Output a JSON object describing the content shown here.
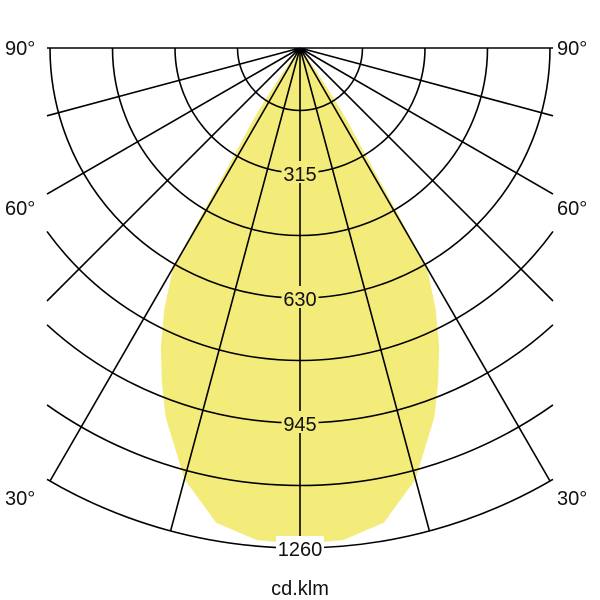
{
  "chart_data": {
    "type": "polar",
    "unit_label": "cd.klm",
    "radial_max": 1260,
    "radial_grid_step": 157.5,
    "radial_tick_labels": [
      "315",
      "630",
      "945",
      "1260"
    ],
    "radial_tick_values": [
      315,
      630,
      945,
      1260
    ],
    "angle_grid_step_deg": 15,
    "angle_labels_left": [
      "90°",
      "60°",
      "30°"
    ],
    "angle_labels_right": [
      "90°",
      "60°",
      "30°"
    ],
    "grid": true,
    "symmetric": true,
    "series": [
      {
        "angles_deg": [
          0,
          5,
          10,
          15,
          20,
          22.5,
          25,
          27.5,
          30,
          30.5,
          31.5,
          33,
          34,
          35,
          36
        ],
        "values": [
          1250,
          1245,
          1215,
          1125,
          990,
          910,
          830,
          740,
          640,
          500,
          320,
          220,
          150,
          80,
          0
        ]
      }
    ],
    "colors": {
      "fill": "#f4ec7a",
      "grid": "#000000"
    }
  }
}
